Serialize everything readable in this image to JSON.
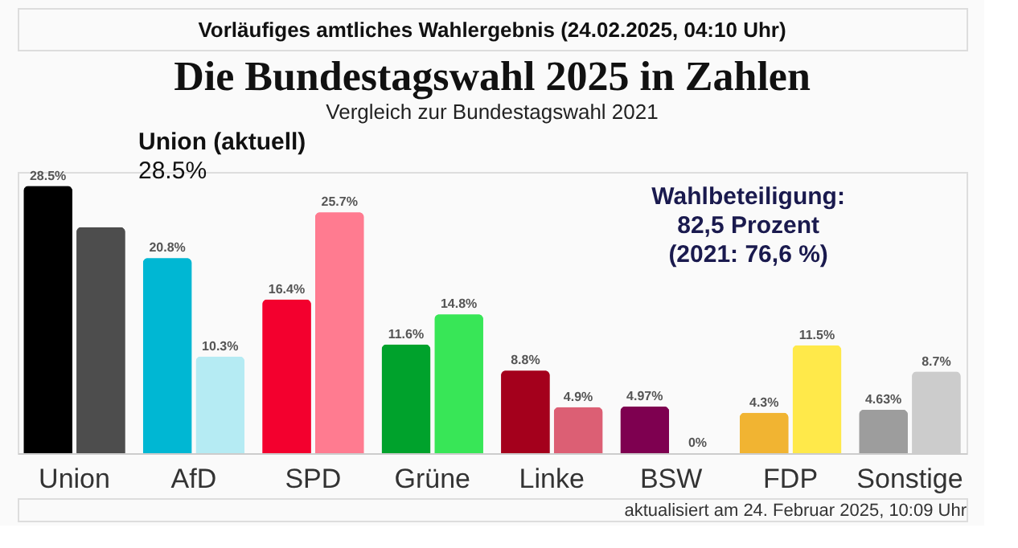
{
  "chart_data": {
    "type": "bar",
    "title": "Die Bundestagswahl 2025 in Zahlen",
    "subtitle": "Vergleich zur Bundestagswahl 2021",
    "categories": [
      "Union",
      "AfD",
      "SPD",
      "Grüne",
      "Linke",
      "BSW",
      "FDP",
      "Sonstige"
    ],
    "series": [
      {
        "colors": [
          "#000000",
          "#00b7d3",
          "#f3002e",
          "#00a22c",
          "#a4001c",
          "#7e0050",
          "#f1b432",
          "#9d9d9d"
        ],
        "values": [
          28.5,
          20.8,
          16.4,
          11.6,
          8.8,
          4.97,
          4.3,
          4.63
        ],
        "value_labels": [
          "28.5%",
          "20.8%",
          "16.4%",
          "11.6%",
          "8.8%",
          "4.97%",
          "4.3%",
          "4.63%"
        ]
      },
      {
        "colors": [
          "#4d4d4d",
          "#b5ebf3",
          "#ff7b90",
          "#38e657",
          "#dc5f74",
          "#c2196b",
          "#ffe94a",
          "#cccccc"
        ],
        "values": [
          24.1,
          10.3,
          25.7,
          14.8,
          4.9,
          0,
          11.5,
          8.7
        ],
        "value_labels": [
          null,
          "10.3%",
          "25.7%",
          "14.8%",
          "4.9%",
          "0%",
          "11.5%",
          "8.7%"
        ]
      }
    ],
    "annotations": [
      "Vorläufiges amtliches Wahlergebnis (24.02.2025, 04:10 Uhr)",
      "Wahlbeteiligung:\n82,5 Prozent\n(2021: 76,6 %)",
      "aktualisiert am 24. Februar 2025, 10:09 Uhr",
      "Union (aktuell)\n28.5%"
    ]
  }
}
